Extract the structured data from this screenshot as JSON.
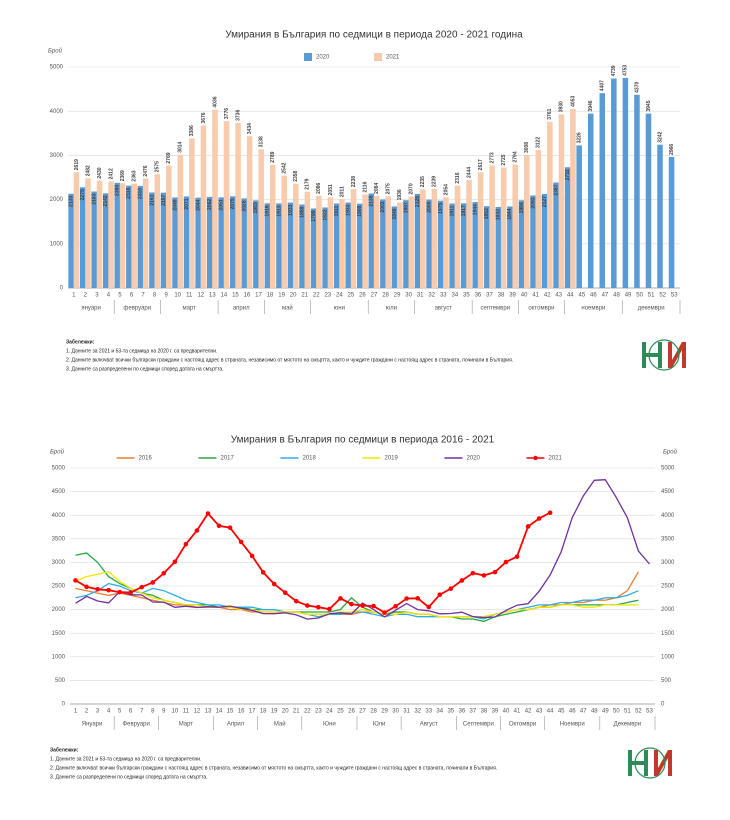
{
  "chart_data": [
    {
      "type": "bar",
      "title": "Умирания в България по седмици в периода 2020 - 2021 година",
      "y_label": "Брой",
      "categories": [
        1,
        2,
        3,
        4,
        5,
        6,
        7,
        8,
        9,
        10,
        11,
        12,
        13,
        14,
        15,
        16,
        17,
        18,
        19,
        20,
        21,
        22,
        23,
        24,
        25,
        26,
        27,
        28,
        29,
        30,
        31,
        32,
        33,
        34,
        35,
        36,
        37,
        38,
        39,
        40,
        41,
        42,
        43,
        44,
        45,
        46,
        47,
        48,
        49,
        50,
        51,
        52,
        53
      ],
      "month_groups": [
        {
          "label": "януари",
          "weeks": [
            1,
            4
          ]
        },
        {
          "label": "февруари",
          "weeks": [
            5,
            8
          ]
        },
        {
          "label": "март",
          "weeks": [
            9,
            13
          ]
        },
        {
          "label": "април",
          "weeks": [
            14,
            17
          ]
        },
        {
          "label": "май",
          "weeks": [
            18,
            21
          ]
        },
        {
          "label": "юни",
          "weeks": [
            22,
            26
          ]
        },
        {
          "label": "юли",
          "weeks": [
            27,
            30
          ]
        },
        {
          "label": "август",
          "weeks": [
            31,
            35
          ]
        },
        {
          "label": "септември",
          "weeks": [
            36,
            39
          ]
        },
        {
          "label": "октомври",
          "weeks": [
            40,
            43
          ]
        },
        {
          "label": "ноември",
          "weeks": [
            44,
            48
          ]
        },
        {
          "label": "декември",
          "weeks": [
            49,
            53
          ]
        }
      ],
      "series": [
        {
          "name": "2020",
          "color": "#5b9bd5",
          "values": [
            2133,
            2279,
            2183,
            2142,
            2380,
            2316,
            2310,
            2161,
            2157,
            2049,
            2071,
            2044,
            2062,
            2051,
            2075,
            2028,
            1983,
            1916,
            1913,
            1933,
            1888,
            1799,
            1822,
            1911,
            1933,
            1908,
            2138,
            2003,
            1846,
            1987,
            2128,
            2000,
            1975,
            1911,
            1917,
            1944,
            1852,
            1832,
            1844,
            1984,
            2093,
            2127,
            2387,
            2732,
            3226,
            3946,
            4407,
            4739,
            4753,
            4370,
            3945,
            3242,
            2966
          ]
        },
        {
          "name": "2021",
          "color": "#f8cbad",
          "values": [
            2619,
            2482,
            2430,
            2412,
            2369,
            2363,
            2476,
            2575,
            2769,
            3014,
            3386,
            3676,
            4036,
            3776,
            3736,
            3434,
            3138,
            2789,
            2542,
            2358,
            2179,
            2086,
            2051,
            2011,
            2238,
            2116,
            2084,
            2075,
            1936,
            2070,
            2235,
            2239,
            2054,
            2316,
            2444,
            2617,
            2773,
            2725,
            2794,
            3008,
            3122,
            3761,
            3930,
            4053,
            null,
            null,
            null,
            null,
            null,
            null,
            null,
            null,
            null
          ]
        }
      ],
      "ylim": [
        0,
        5000
      ],
      "yticks": [
        0,
        1000,
        2000,
        3000,
        4000,
        5000
      ],
      "grid": true,
      "notes_title": "Забележки:",
      "notes": [
        "1. Данните за 2021 и 53-та седмица на 2020 г. са предварителни.",
        "2. Данните включват всички български граждани с настоящ адрес в страната, независимо от мястото на смъртта, както и чуждите граждани с настоящ адрес в страната, починали в България.",
        "3. Данните са разпределени по седмици според датата на смъртта."
      ]
    },
    {
      "type": "line",
      "title": "Умирания в България по седмици в периода 2016 - 2021",
      "y_label": "Брой",
      "y2_label": "Брой",
      "categories": [
        1,
        2,
        3,
        4,
        5,
        6,
        7,
        8,
        9,
        10,
        11,
        12,
        13,
        14,
        15,
        16,
        17,
        18,
        19,
        20,
        21,
        22,
        23,
        24,
        25,
        26,
        27,
        28,
        29,
        30,
        31,
        32,
        33,
        34,
        35,
        36,
        37,
        38,
        39,
        40,
        41,
        42,
        43,
        44,
        45,
        46,
        47,
        48,
        49,
        50,
        51,
        52,
        53
      ],
      "month_groups": [
        {
          "label": "Януари",
          "weeks": [
            1,
            4
          ]
        },
        {
          "label": "Февруари",
          "weeks": [
            5,
            8
          ]
        },
        {
          "label": "Март",
          "weeks": [
            9,
            13
          ]
        },
        {
          "label": "Април",
          "weeks": [
            14,
            17
          ]
        },
        {
          "label": "Май",
          "weeks": [
            18,
            21
          ]
        },
        {
          "label": "Юни",
          "weeks": [
            22,
            26
          ]
        },
        {
          "label": "Юли",
          "weeks": [
            27,
            30
          ]
        },
        {
          "label": "Август",
          "weeks": [
            31,
            35
          ]
        },
        {
          "label": "Септември",
          "weeks": [
            36,
            39
          ]
        },
        {
          "label": "Октомври",
          "weeks": [
            40,
            43
          ]
        },
        {
          "label": "Ноември",
          "weeks": [
            44,
            48
          ]
        },
        {
          "label": "Декември",
          "weeks": [
            49,
            53
          ]
        }
      ],
      "series": [
        {
          "name": "2016",
          "color": "#ed7d31",
          "values": [
            2450,
            2400,
            2350,
            2300,
            2350,
            2300,
            2250,
            2200,
            2150,
            2100,
            2100,
            2050,
            2050,
            2050,
            2000,
            2000,
            1950,
            1950,
            1950,
            1950,
            1950,
            1900,
            1900,
            1900,
            1900,
            1900,
            1950,
            1950,
            1900,
            1950,
            1950,
            1900,
            1900,
            1850,
            1850,
            1850,
            1850,
            1850,
            1900,
            1950,
            2000,
            2000,
            2050,
            2100,
            2100,
            2150,
            2150,
            2200,
            2200,
            2250,
            2400,
            2800,
            null
          ]
        },
        {
          "name": "2017",
          "color": "#28a745",
          "values": [
            3150,
            3200,
            3000,
            2700,
            2550,
            2450,
            2350,
            2300,
            2200,
            2150,
            2100,
            2100,
            2100,
            2050,
            2050,
            2050,
            2000,
            2000,
            2000,
            1950,
            1950,
            1950,
            1950,
            1950,
            2000,
            2250,
            2050,
            1950,
            1900,
            1950,
            1950,
            1900,
            1900,
            1850,
            1850,
            1800,
            1800,
            1750,
            1850,
            1900,
            1950,
            2000,
            2050,
            2050,
            2100,
            2100,
            2100,
            2100,
            2100,
            2100,
            2150,
            2200,
            null
          ]
        },
        {
          "name": "2018",
          "color": "#2eaee6",
          "values": [
            2250,
            2300,
            2400,
            2550,
            2500,
            2400,
            2350,
            2450,
            2400,
            2300,
            2200,
            2150,
            2100,
            2100,
            2050,
            2050,
            2050,
            2000,
            2000,
            1950,
            1950,
            1900,
            1850,
            1900,
            1900,
            1950,
            1950,
            1900,
            1850,
            1900,
            1900,
            1850,
            1850,
            1850,
            1850,
            1850,
            1850,
            1800,
            1900,
            1950,
            2000,
            2050,
            2100,
            2100,
            2150,
            2150,
            2200,
            2200,
            2250,
            2250,
            2300,
            2400,
            null
          ]
        },
        {
          "name": "2019",
          "color": "#f2e600",
          "values": [
            2600,
            2700,
            2750,
            2800,
            2600,
            2450,
            2350,
            2250,
            2200,
            2150,
            2100,
            2100,
            2050,
            2050,
            2050,
            2000,
            2000,
            1950,
            1950,
            1950,
            1950,
            1900,
            1900,
            1900,
            1950,
            1950,
            2000,
            1950,
            1900,
            1900,
            1950,
            1900,
            1900,
            1850,
            1850,
            1850,
            1850,
            1850,
            1900,
            1950,
            2000,
            2000,
            2050,
            2050,
            2100,
            2100,
            2050,
            2050,
            2100,
            2100,
            2100,
            2100,
            null
          ]
        },
        {
          "name": "2020",
          "color": "#7030a0",
          "values": [
            2133,
            2279,
            2183,
            2142,
            2380,
            2316,
            2310,
            2161,
            2157,
            2049,
            2071,
            2044,
            2062,
            2051,
            2075,
            2028,
            1983,
            1916,
            1913,
            1933,
            1888,
            1799,
            1822,
            1911,
            1933,
            1908,
            2138,
            2003,
            1846,
            1987,
            2128,
            2000,
            1975,
            1911,
            1917,
            1944,
            1852,
            1832,
            1844,
            1984,
            2093,
            2127,
            2387,
            2732,
            3226,
            3946,
            4407,
            4739,
            4753,
            4370,
            3945,
            3242,
            2966
          ]
        },
        {
          "name": "2021",
          "color": "#ff0000",
          "markers": true,
          "values": [
            2619,
            2482,
            2430,
            2412,
            2369,
            2363,
            2476,
            2575,
            2769,
            3014,
            3386,
            3676,
            4036,
            3776,
            3736,
            3434,
            3138,
            2789,
            2542,
            2358,
            2179,
            2086,
            2051,
            2011,
            2238,
            2116,
            2084,
            2075,
            1936,
            2070,
            2235,
            2239,
            2054,
            2316,
            2444,
            2617,
            2773,
            2725,
            2794,
            3008,
            3122,
            3761,
            3930,
            4053,
            null,
            null,
            null,
            null,
            null,
            null,
            null,
            null,
            null
          ]
        }
      ],
      "ylim": [
        0,
        5000
      ],
      "yticks": [
        0,
        500,
        1000,
        1500,
        2000,
        2500,
        3000,
        3500,
        4000,
        4500,
        5000
      ],
      "y2lim": [
        0,
        5000
      ],
      "y2ticks": [
        0,
        500,
        1000,
        1500,
        2000,
        2500,
        3000,
        3500,
        4000,
        4500,
        5000
      ],
      "grid": true,
      "notes_title": "Забележки:",
      "notes": [
        "1. Данните за 2021 и 53-та седмица на 2020 г. са предварителни.",
        "2. Данните включват всички български граждани с настоящ адрес в страната, независимо от мястото на смъртта, както и чуждите граждани с настоящ адрес в страната, починали в България.",
        "3. Данните са разпределени по седмици според датата на смъртта."
      ]
    }
  ]
}
